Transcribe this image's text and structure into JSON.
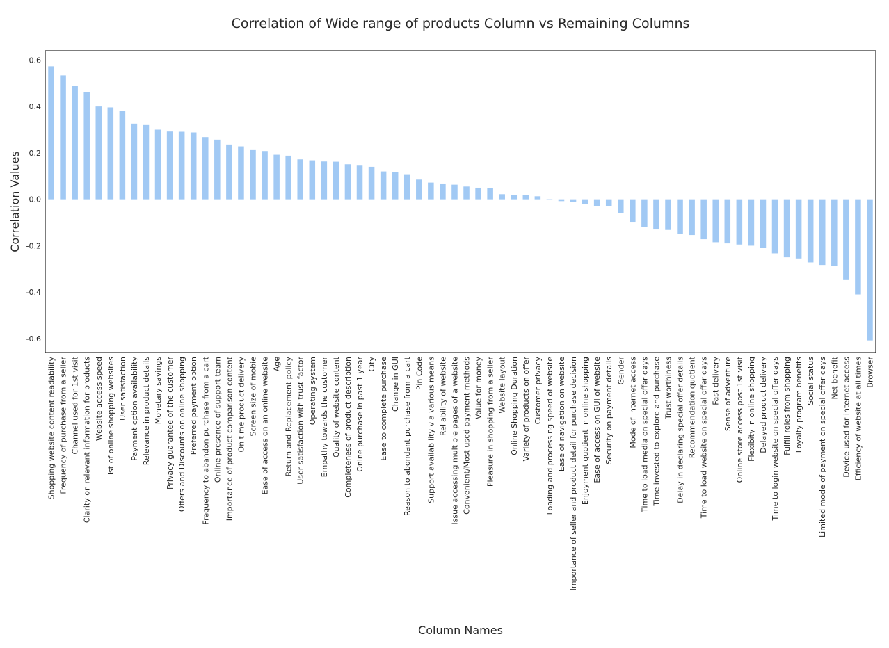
{
  "chart_data": {
    "type": "bar",
    "title": "Correlation of Wide range of products Column vs Remaining Columns",
    "xlabel": "Column Names",
    "ylabel": "Correlation Values",
    "ylim": [
      -0.66,
      0.64
    ],
    "yticks": [
      -0.6,
      -0.4,
      -0.2,
      0.0,
      0.2,
      0.4,
      0.6
    ],
    "ytick_labels": [
      "-0.6",
      "-0.4",
      "-0.2",
      "0.0",
      "0.2",
      "0.4",
      "0.6"
    ],
    "grid": false,
    "legend": "none",
    "bar_color": "#a1c9f4",
    "categories": [
      "Shopping website content readability",
      "Frequency of purchase from a seller",
      "Channel used for 1st visit",
      "Clarity on relevant information for products",
      "Website access speed",
      "List of online shopping websites",
      "User satisfaction",
      "Payment option availability",
      "Relevance in product details",
      "Monetary savings",
      "Privacy guarantee of the customer",
      "Offers and Discounts on online shopping",
      "Preferred payment option",
      "Frequency to abandon purchase from a cart",
      "Online presence of support team",
      "Importance of product comparison content",
      "On time product delivery",
      "Screen size of mobie",
      "Ease of access on an online website",
      "Age",
      "Return and Replacement policy",
      "User satisfaction with trust factor",
      "Operating system",
      "Empathy towards the customer",
      "Quality of website content",
      "Completeness of product description",
      "Onine purchase in past 1 year",
      "City",
      "Ease to complete purchase",
      "Change in GUI",
      "Reason to abondant purchase from a cart",
      "Pin Code",
      "Support availability via various means",
      "Reliability of website",
      "Issue accessing multiple pages of a website",
      "Convenient/Most used payment methods",
      "Value for money",
      "Pleasure in shopping from a seller",
      "Website layout",
      "Online Shopping Duration",
      "Variety of products on offer",
      "Customer privacy",
      "Loading and processing speed of website",
      "Ease of navigation on website",
      "Importance of seller and product detail for purchase decision",
      "Enjoyment quotient in online shopping",
      "Ease of access on GUI of website",
      "Security on payment details",
      "Gender",
      "Mode of internet access",
      "Time to load media on special offer days",
      "Time invested to explore and purchase",
      "Trust worthiness",
      "Delay in declaring special offer details",
      "Recommendation quotient",
      "Time to load website on special offer days",
      "Fast delivery",
      "Sense of adventure",
      "Online store access post 1st visit",
      "Flexibity in online shopping",
      "Delayed product delivery",
      "Time to login website on special offer days",
      "Fulfill roles from shopping",
      "Loyalty program benefits",
      "Social status",
      "Limited mode of payment on special offer days",
      "Net benefit",
      "Device used for internet access",
      "Efficiency of website at all times",
      "Browser"
    ],
    "values": [
      0.573,
      0.534,
      0.49,
      0.463,
      0.4,
      0.396,
      0.38,
      0.326,
      0.32,
      0.3,
      0.292,
      0.291,
      0.288,
      0.268,
      0.257,
      0.236,
      0.228,
      0.212,
      0.208,
      0.192,
      0.188,
      0.172,
      0.168,
      0.163,
      0.162,
      0.151,
      0.145,
      0.14,
      0.12,
      0.117,
      0.108,
      0.085,
      0.072,
      0.068,
      0.063,
      0.055,
      0.05,
      0.049,
      0.022,
      0.018,
      0.017,
      0.013,
      -0.003,
      -0.008,
      -0.013,
      -0.02,
      -0.029,
      -0.03,
      -0.06,
      -0.1,
      -0.12,
      -0.13,
      -0.132,
      -0.148,
      -0.154,
      -0.172,
      -0.185,
      -0.19,
      -0.195,
      -0.2,
      -0.208,
      -0.233,
      -0.25,
      -0.255,
      -0.272,
      -0.283,
      -0.287,
      -0.345,
      -0.41,
      -0.608
    ]
  }
}
